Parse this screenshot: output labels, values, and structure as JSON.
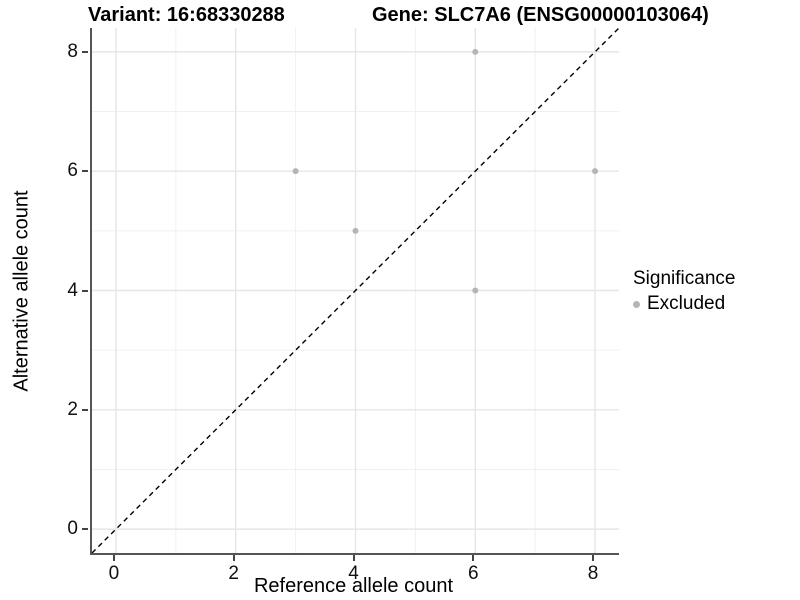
{
  "titles": {
    "variant": "Variant: 16:68330288",
    "gene": "Gene: SLC7A6 (ENSG00000103064)"
  },
  "axes": {
    "x": {
      "label": "Reference allele count",
      "tick_values": [
        0,
        2,
        4,
        6,
        8
      ]
    },
    "y": {
      "label": "Alternative allele count",
      "tick_values": [
        0,
        2,
        4,
        6,
        8
      ]
    }
  },
  "legend": {
    "title": "Significance",
    "items": [
      {
        "label": "Excluded",
        "color": "#b5b5b5"
      }
    ]
  },
  "colors": {
    "point": "#b5b5b5",
    "grid_major": "#e6e6e6",
    "grid_minor": "#f0f0f0",
    "axis_line": "#555555",
    "reference_line": "#000000",
    "text": "#000000"
  },
  "chart_data": {
    "type": "scatter",
    "title": "Variant: 16:68330288 | Gene: SLC7A6 (ENSG00000103064)",
    "xlabel": "Reference allele count",
    "ylabel": "Alternative allele count",
    "xlim": [
      -0.4,
      8.4
    ],
    "ylim": [
      -0.4,
      8.4
    ],
    "x_breaks": [
      0,
      2,
      4,
      6,
      8
    ],
    "y_breaks": [
      0,
      2,
      4,
      6,
      8
    ],
    "x_minor_breaks": [
      1,
      3,
      5,
      7
    ],
    "y_minor_breaks": [
      1,
      3,
      5,
      7
    ],
    "grid": true,
    "legend_position": "right",
    "legend_title": "Significance",
    "series": [
      {
        "name": "Excluded",
        "color": "#b5b5b5",
        "points": [
          [
            3,
            6
          ],
          [
            4,
            5
          ],
          [
            6,
            4
          ],
          [
            6,
            8
          ],
          [
            8,
            6
          ]
        ]
      }
    ],
    "reference_line": {
      "type": "identity y=x",
      "style": "dashed",
      "color": "#000000"
    }
  }
}
